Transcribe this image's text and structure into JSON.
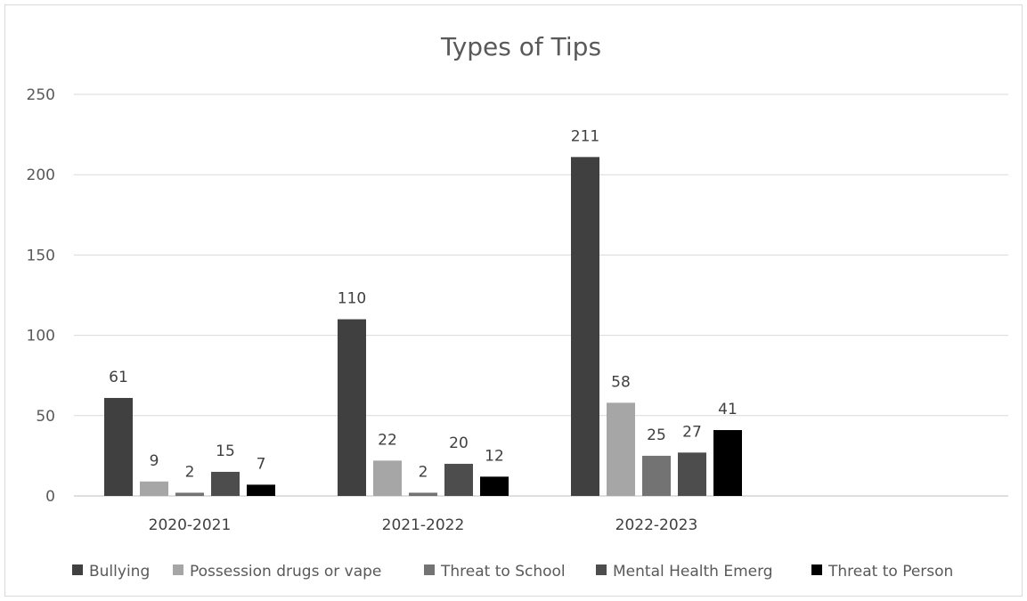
{
  "chart_data": {
    "type": "bar",
    "title": "Types of Tips",
    "categories": [
      "2020-2021",
      "2021-2022",
      "2022-2023"
    ],
    "yticks": [
      "0",
      "50",
      "100",
      "150",
      "200",
      "250"
    ],
    "ylim": [
      0,
      250
    ],
    "grid": true,
    "legend_position": "bottom",
    "series": [
      {
        "name": "Bullying",
        "values": [
          61,
          110,
          211
        ],
        "color": "#404040"
      },
      {
        "name": "Possession drugs or vape",
        "values": [
          9,
          22,
          58
        ],
        "color": "#a6a6a6"
      },
      {
        "name": "Threat to School",
        "values": [
          2,
          2,
          25
        ],
        "color": "#737373"
      },
      {
        "name": "Mental Health Emerg",
        "values": [
          15,
          20,
          27
        ],
        "color": "#4d4d4d"
      },
      {
        "name": "Threat to Person",
        "values": [
          7,
          12,
          41
        ],
        "color": "#000000"
      }
    ]
  }
}
